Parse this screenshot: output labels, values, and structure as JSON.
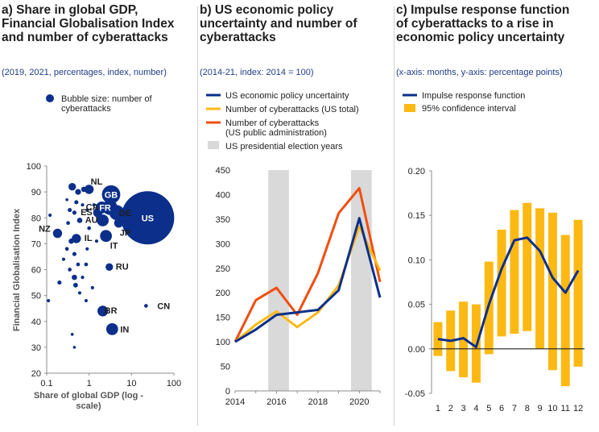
{
  "colors": {
    "navy": "#0b2f8a",
    "yellow": "#fdb913",
    "orange": "#f04e0f",
    "grey_band": "#d9d9d9",
    "subtitle_blue": "#1f3c88"
  },
  "panels": [
    {
      "title_lines": [
        "a) Share in global GDP,",
        "Financial Globalisation Index",
        "and number of cyberattacks"
      ],
      "subtitle": "(2019, 2021, percentages, index, number)"
    },
    {
      "title_lines": [
        "b) US economic policy",
        "uncertainty and number of",
        "cyberattacks"
      ],
      "subtitle": "(2014-21, index: 2014 = 100)"
    },
    {
      "title_lines": [
        "c) Impulse response function",
        "of cyberattacks to a rise in",
        "economic policy uncertainty"
      ],
      "subtitle": "(x-axis: months, y-axis: percentage points)"
    }
  ],
  "chart_data": [
    {
      "type": "scatter",
      "title": "a) Share in global GDP, Financial Globalisation Index and number of cyberattacks",
      "subtitle": "(2019, 2021, percentages, index, number)",
      "xlabel": "Share of global GDP (log - scale)",
      "ylabel": "Financial Globalisation Index",
      "x_scale": "log",
      "xlim": [
        0.1,
        100
      ],
      "ylim": [
        20,
        100
      ],
      "x_ticks": [
        0.1,
        1,
        10,
        100
      ],
      "x_tick_labels": [
        "0.1",
        "1",
        "10",
        "100"
      ],
      "y_ticks": [
        20,
        30,
        40,
        50,
        60,
        70,
        80,
        90,
        100
      ],
      "legend": {
        "label": "Bubble size: number of cyberattacks",
        "label_lines": [
          "Bubble size: number of",
          "cyberattacks"
        ],
        "position": "top"
      },
      "grid": false,
      "points": [
        {
          "label": "US",
          "x": 24,
          "y": 80,
          "size": 100
        },
        {
          "label": "GB",
          "x": 3.3,
          "y": 89,
          "size": 12
        },
        {
          "label": "FR",
          "x": 3.1,
          "y": 84,
          "size": 8
        },
        {
          "label": "DE",
          "x": 4.5,
          "y": 82,
          "size": 8
        },
        {
          "label": "NL",
          "x": 1.0,
          "y": 91,
          "size": 3
        },
        {
          "label": "CA",
          "x": 2.0,
          "y": 84,
          "size": 5
        },
        {
          "label": "ES",
          "x": 1.6,
          "y": 82,
          "size": 3
        },
        {
          "label": "AU",
          "x": 2.1,
          "y": 79,
          "size": 5
        },
        {
          "label": "JP",
          "x": 5.0,
          "y": 78,
          "size": 3
        },
        {
          "label": "NZ",
          "x": 0.18,
          "y": 74,
          "size": 3
        },
        {
          "label": "IL",
          "x": 0.5,
          "y": 72,
          "size": 3
        },
        {
          "label": "IT",
          "x": 2.5,
          "y": 73,
          "size": 5
        },
        {
          "label": "RU",
          "x": 3.0,
          "y": 61,
          "size": 2
        },
        {
          "label": "BR",
          "x": 2.1,
          "y": 44,
          "size": 4
        },
        {
          "label": "IN",
          "x": 3.5,
          "y": 37,
          "size": 5
        },
        {
          "label": "CN",
          "x": 22,
          "y": 46,
          "size": 0.5
        },
        {
          "label": "",
          "x": 0.4,
          "y": 92,
          "size": 2
        },
        {
          "label": "",
          "x": 0.55,
          "y": 90,
          "size": 1.2
        },
        {
          "label": "",
          "x": 0.75,
          "y": 91,
          "size": 1
        },
        {
          "label": "",
          "x": 0.3,
          "y": 87,
          "size": 0.3
        },
        {
          "label": "",
          "x": 0.5,
          "y": 86,
          "size": 0.6
        },
        {
          "label": "",
          "x": 0.35,
          "y": 83,
          "size": 0.6
        },
        {
          "label": "",
          "x": 0.45,
          "y": 82,
          "size": 0.6
        },
        {
          "label": "",
          "x": 0.7,
          "y": 85,
          "size": 0.4
        },
        {
          "label": "",
          "x": 0.9,
          "y": 83,
          "size": 0.4
        },
        {
          "label": "",
          "x": 1.3,
          "y": 85,
          "size": 0.4
        },
        {
          "label": "",
          "x": 0.32,
          "y": 78,
          "size": 0.5
        },
        {
          "label": "",
          "x": 0.6,
          "y": 79,
          "size": 1
        },
        {
          "label": "",
          "x": 1.0,
          "y": 76,
          "size": 0.5
        },
        {
          "label": "",
          "x": 0.12,
          "y": 81,
          "size": 0.4
        },
        {
          "label": "",
          "x": 0.38,
          "y": 71,
          "size": 1
        },
        {
          "label": "",
          "x": 0.3,
          "y": 68,
          "size": 0.5
        },
        {
          "label": "",
          "x": 0.45,
          "y": 66,
          "size": 0.6
        },
        {
          "label": "",
          "x": 0.9,
          "y": 68,
          "size": 0.4
        },
        {
          "label": "",
          "x": 1.5,
          "y": 71,
          "size": 0.4
        },
        {
          "label": "",
          "x": 0.25,
          "y": 64,
          "size": 0.4
        },
        {
          "label": "",
          "x": 0.55,
          "y": 62,
          "size": 0.5
        },
        {
          "label": "",
          "x": 0.85,
          "y": 62,
          "size": 0.5
        },
        {
          "label": "",
          "x": 0.35,
          "y": 60,
          "size": 0.5
        },
        {
          "label": "",
          "x": 0.45,
          "y": 57,
          "size": 1
        },
        {
          "label": "",
          "x": 0.7,
          "y": 57,
          "size": 0.4
        },
        {
          "label": "",
          "x": 0.2,
          "y": 55,
          "size": 0.6
        },
        {
          "label": "",
          "x": 0.48,
          "y": 54,
          "size": 0.8
        },
        {
          "label": "",
          "x": 1.2,
          "y": 53,
          "size": 0.4
        },
        {
          "label": "",
          "x": 0.6,
          "y": 51,
          "size": 0.4
        },
        {
          "label": "",
          "x": 0.11,
          "y": 48,
          "size": 0.4
        },
        {
          "label": "",
          "x": 0.85,
          "y": 48,
          "size": 0.4
        },
        {
          "label": "",
          "x": 0.4,
          "y": 35,
          "size": 0.3
        },
        {
          "label": "",
          "x": 0.45,
          "y": 30,
          "size": 0.3
        }
      ]
    },
    {
      "type": "line",
      "title": "b) US economic policy uncertainty and number of cyberattacks",
      "subtitle": "(2014-21, index: 2014 = 100)",
      "x": [
        2014,
        2015,
        2016,
        2017,
        2018,
        2019,
        2020,
        2021
      ],
      "xlim": [
        2014,
        2021
      ],
      "ylim": [
        0,
        450
      ],
      "x_ticks": [
        2014,
        2016,
        2018,
        2020
      ],
      "y_ticks": [
        0,
        50,
        100,
        150,
        200,
        250,
        300,
        350,
        400,
        450
      ],
      "legend": {
        "position": "top"
      },
      "shaded_bands": [
        {
          "label": "US presidential election years",
          "from": 2015.6,
          "to": 2016.6
        },
        {
          "label": "US presidential election years",
          "from": 2019.6,
          "to": 2020.6
        }
      ],
      "grid": false,
      "series": [
        {
          "name": "US economic policy uncertainty",
          "color": "#0b2f8a",
          "values": [
            100,
            125,
            155,
            160,
            165,
            205,
            352,
            190
          ]
        },
        {
          "name": "Number of cyberattacks (US total)",
          "color": "#fdb913",
          "values": [
            100,
            135,
            162,
            130,
            160,
            215,
            335,
            245
          ]
        },
        {
          "name": "Number of cyberattacks (US public administration)",
          "name_lines": [
            "Number of cyberattacks",
            "(US public administration)"
          ],
          "color": "#f04e0f",
          "values": [
            100,
            185,
            210,
            155,
            240,
            362,
            413,
            222
          ]
        }
      ],
      "band_legend": "US presidential election years"
    },
    {
      "type": "bar",
      "title": "c) Impulse response function of cyberattacks to a rise in economic policy uncertainty",
      "subtitle": "(x-axis: months, y-axis: percentage points)",
      "categories": [
        "1",
        "2",
        "3",
        "4",
        "5",
        "6",
        "7",
        "8",
        "9",
        "10",
        "11",
        "12"
      ],
      "ylim": [
        -0.05,
        0.2
      ],
      "y_ticks": [
        -0.05,
        0.0,
        0.05,
        0.1,
        0.15,
        0.2
      ],
      "y_tick_labels": [
        "-0.05",
        "0.00",
        "0.05",
        "0.10",
        "0.15",
        "0.20"
      ],
      "legend": {
        "position": "top"
      },
      "grid": false,
      "series": [
        {
          "name": "Impulse response function",
          "type": "line",
          "color": "#0b2f8a",
          "values": [
            0.011,
            0.009,
            0.012,
            0.002,
            0.05,
            0.09,
            0.122,
            0.125,
            0.11,
            0.08,
            0.063,
            0.088
          ]
        },
        {
          "name": "95% confidence interval",
          "type": "range_bar",
          "color": "#fdb913",
          "low": [
            -0.008,
            -0.025,
            -0.032,
            -0.038,
            -0.006,
            0.014,
            0.017,
            0.02,
            0.0,
            -0.024,
            -0.042,
            -0.02
          ],
          "high": [
            0.03,
            0.043,
            0.053,
            0.05,
            0.098,
            0.134,
            0.156,
            0.164,
            0.158,
            0.153,
            0.128,
            0.145
          ]
        }
      ]
    }
  ]
}
